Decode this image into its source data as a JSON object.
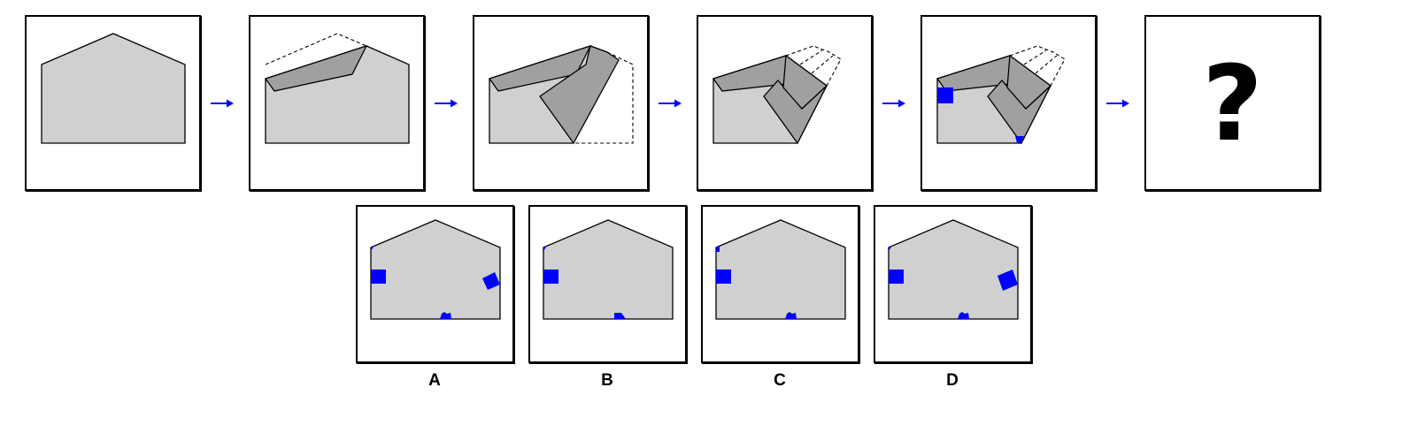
{
  "puzzle": {
    "steps": [
      "step-1-original",
      "step-2-fold-top",
      "step-3-fold-right",
      "step-4-fold-tip",
      "step-5-punch",
      "step-6-unknown"
    ],
    "question_mark": "?",
    "options": [
      {
        "label": "A"
      },
      {
        "label": "B"
      },
      {
        "label": "C"
      },
      {
        "label": "D"
      }
    ]
  },
  "colors": {
    "paper": "#d0d0d0",
    "folded": "#a0a0a0",
    "hole": "#0000ff",
    "arrow": "#0000ff",
    "outline": "#000000"
  },
  "icons": {
    "arrow": "arrow-right-icon",
    "hole": "square-hole-icon"
  }
}
